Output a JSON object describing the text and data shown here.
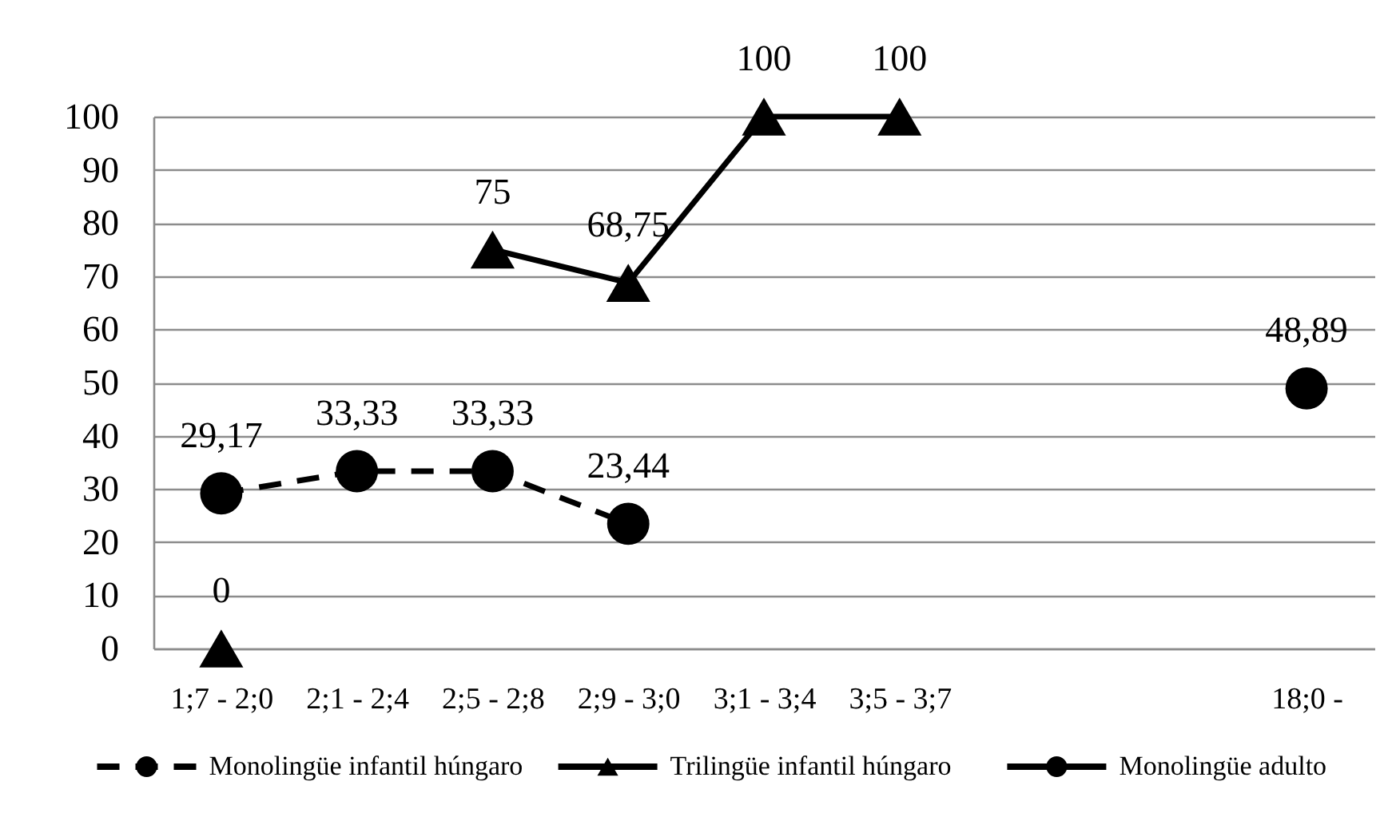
{
  "chart_data": {
    "type": "line",
    "categories": [
      "1;7 - 2;0",
      "2;1 - 2;4",
      "2;5 - 2;8",
      "2;9 - 3;0",
      "3;1 - 3;4",
      "3;5 - 3;7",
      null,
      null,
      "18;0 -"
    ],
    "series": [
      {
        "name": "Monolingüe infantil húngaro",
        "color": "#000000",
        "marker": "circle",
        "line_style": "dashed",
        "values": [
          29.17,
          33.33,
          33.33,
          23.44,
          null,
          null,
          null,
          null,
          null
        ],
        "value_labels": [
          "29,17",
          "33,33",
          "33,33",
          "23,44",
          null,
          null,
          null,
          null,
          null
        ]
      },
      {
        "name": "Trilingüe infantil húngaro",
        "color": "#000000",
        "marker": "triangle",
        "line_style": "solid",
        "values": [
          0,
          null,
          75,
          68.75,
          100,
          100,
          null,
          null,
          null
        ],
        "value_labels": [
          "0",
          null,
          "75",
          "68,75",
          "100",
          "100",
          null,
          null,
          null
        ]
      },
      {
        "name": "Monolingüe adulto",
        "color": "#000000",
        "marker": "circle",
        "line_style": "solid",
        "values": [
          null,
          null,
          null,
          null,
          null,
          null,
          null,
          null,
          48.89
        ],
        "value_labels": [
          null,
          null,
          null,
          null,
          null,
          null,
          null,
          null,
          "48,89"
        ]
      }
    ],
    "ylim": [
      0,
      100
    ],
    "yticks": [
      0,
      10,
      20,
      30,
      40,
      50,
      60,
      70,
      80,
      90,
      100
    ],
    "grid": "y",
    "legend": "bottom"
  }
}
